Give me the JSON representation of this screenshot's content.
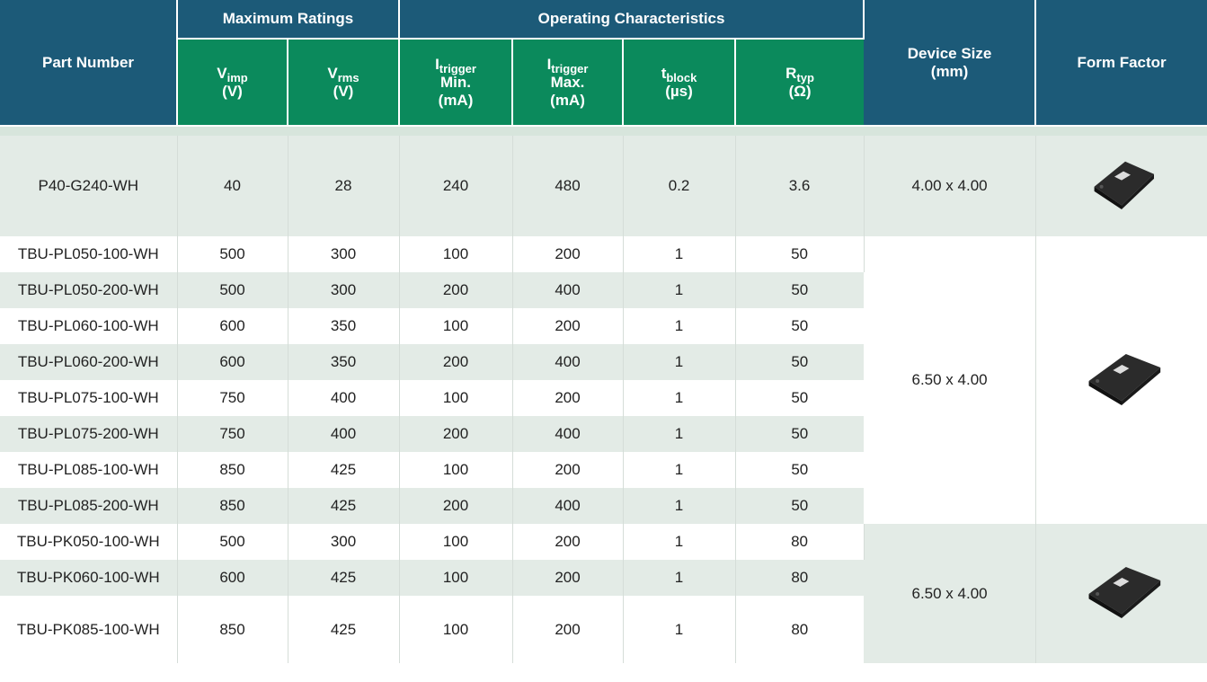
{
  "header": {
    "part_number": "Part Number",
    "max_ratings": "Maximum Ratings",
    "operating": "Operating Characteristics",
    "device_size": "Device Size (mm)",
    "form_factor": "Form Factor",
    "columns": [
      {
        "symbol": "V",
        "sub": "imp",
        "unit": "(V)"
      },
      {
        "symbol": "V",
        "sub": "rms",
        "unit": "(V)"
      },
      {
        "symbol": "I",
        "sub": "trigger",
        "qualifier": "Min.",
        "unit": "(mA)"
      },
      {
        "symbol": "I",
        "sub": "trigger",
        "qualifier": "Max.",
        "unit": "(mA)"
      },
      {
        "symbol": "t",
        "sub": "block",
        "unit": "(µs)"
      },
      {
        "symbol": "R",
        "sub": "typ",
        "unit": "(Ω)"
      }
    ]
  },
  "groups": [
    {
      "device_size": "4.00 x 4.00",
      "rows": [
        [
          "P40-G240-WH",
          40,
          28,
          240,
          480,
          0.2,
          3.6
        ]
      ]
    },
    {
      "device_size": "6.50 x 4.00",
      "rows": [
        [
          "TBU-PL050-100-WH",
          500,
          300,
          100,
          200,
          1,
          50
        ],
        [
          "TBU-PL050-200-WH",
          500,
          300,
          200,
          400,
          1,
          50
        ],
        [
          "TBU-PL060-100-WH",
          600,
          350,
          100,
          200,
          1,
          50
        ],
        [
          "TBU-PL060-200-WH",
          600,
          350,
          200,
          400,
          1,
          50
        ],
        [
          "TBU-PL075-100-WH",
          750,
          400,
          100,
          200,
          1,
          50
        ],
        [
          "TBU-PL075-200-WH",
          750,
          400,
          200,
          400,
          1,
          50
        ],
        [
          "TBU-PL085-100-WH",
          850,
          425,
          100,
          200,
          1,
          50
        ],
        [
          "TBU-PL085-200-WH",
          850,
          425,
          200,
          400,
          1,
          50
        ]
      ]
    },
    {
      "device_size": "6.50 x 4.00",
      "rows": [
        [
          "TBU-PK050-100-WH",
          500,
          300,
          100,
          200,
          1,
          80
        ],
        [
          "TBU-PK060-100-WH",
          600,
          425,
          100,
          200,
          1,
          80
        ],
        [
          "TBU-PK085-100-WH",
          850,
          425,
          100,
          200,
          1,
          80
        ]
      ]
    }
  ]
}
